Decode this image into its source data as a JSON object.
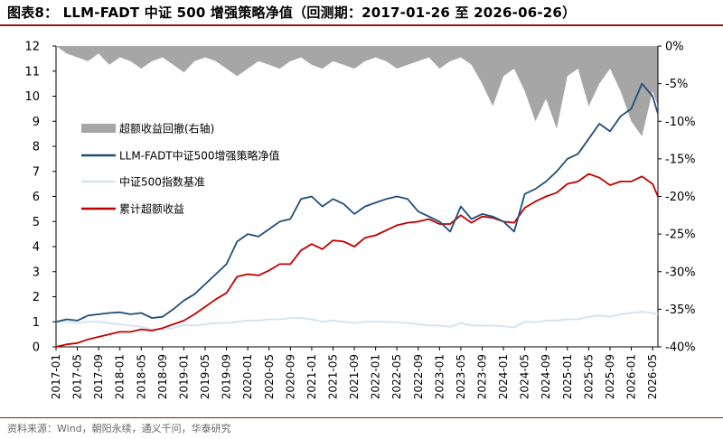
{
  "page_title": "图表8： LLM-FADT 中证 500 增强策略净值（回测期：2017-01-26 至 2026-06-26）",
  "source_note": "资料来源：Wind，朝阳永续，通义千问，华泰研究",
  "colors": {
    "drawdown": "#a6a6a6",
    "strategy": "#1f4e79",
    "index": "#d6e4f0",
    "excess": "#c00000"
  },
  "chart_data": {
    "type": "line",
    "title": "LLM-FADT 中证 500 增强策略净值",
    "x_tick_labels": [
      "2017-01",
      "2017-05",
      "2017-09",
      "2018-01",
      "2018-05",
      "2018-09",
      "2019-01",
      "2019-05",
      "2019-09",
      "2020-01",
      "2020-05",
      "2020-09",
      "2021-01",
      "2021-05",
      "2021-09",
      "2022-01",
      "2022-05",
      "2022-09",
      "2023-01",
      "2023-05",
      "2023-09",
      "2024-01",
      "2024-05",
      "2024-09",
      "2025-01",
      "2025-05",
      "2025-09",
      "2026-01",
      "2026-05"
    ],
    "left_axis": {
      "range": [
        0,
        12
      ],
      "ticks": [
        "0",
        "1",
        "2",
        "3",
        "4",
        "5",
        "6",
        "7",
        "8",
        "9",
        "10",
        "11",
        "12"
      ]
    },
    "right_axis": {
      "range": [
        -40,
        0
      ],
      "ticks": [
        "0%",
        "-5%",
        "-10%",
        "-15%",
        "-20%",
        "-25%",
        "-30%",
        "-35%",
        "-40%"
      ]
    },
    "legend_position": "upper-left",
    "x_months": [
      0,
      2,
      4,
      6,
      8,
      10,
      12,
      14,
      16,
      18,
      20,
      22,
      24,
      26,
      28,
      30,
      32,
      34,
      36,
      38,
      40,
      42,
      44,
      46,
      48,
      50,
      52,
      54,
      56,
      58,
      60,
      62,
      64,
      66,
      68,
      70,
      72,
      74,
      76,
      78,
      80,
      82,
      84,
      86,
      88,
      90,
      92,
      94,
      96,
      98,
      100,
      102,
      104,
      106,
      108,
      110,
      112,
      113
    ],
    "series": [
      {
        "name": "超额收益回撤(右轴)",
        "axis": "right",
        "style": "area",
        "values": [
          0,
          -1,
          -1.5,
          -2,
          -1,
          -2.5,
          -1.5,
          -2,
          -3,
          -2,
          -1.5,
          -2.5,
          -3.5,
          -2,
          -1.5,
          -2,
          -3,
          -4,
          -3,
          -2,
          -2.5,
          -3,
          -2,
          -1.5,
          -2.5,
          -3,
          -2,
          -2.5,
          -3,
          -2,
          -1.5,
          -2,
          -3,
          -2.5,
          -2,
          -1.5,
          -3,
          -2,
          -1.5,
          -2.5,
          -5,
          -8,
          -4,
          -3,
          -6,
          -10,
          -7,
          -11,
          -4,
          -3,
          -8,
          -5,
          -3,
          -6,
          -10,
          -12,
          -6,
          -8
        ]
      },
      {
        "name": "LLM-FADT中证500增强策略净值",
        "axis": "left",
        "style": "line",
        "values": [
          1.0,
          1.1,
          1.05,
          1.25,
          1.3,
          1.35,
          1.38,
          1.3,
          1.35,
          1.15,
          1.2,
          1.5,
          1.85,
          2.1,
          2.5,
          2.9,
          3.3,
          4.2,
          4.5,
          4.4,
          4.7,
          5.0,
          5.1,
          5.9,
          6.0,
          5.6,
          5.9,
          5.7,
          5.3,
          5.6,
          5.75,
          5.9,
          6.0,
          5.9,
          5.4,
          5.2,
          5.0,
          4.6,
          5.6,
          5.1,
          5.3,
          5.2,
          5.0,
          4.6,
          6.1,
          6.3,
          6.6,
          7.0,
          7.5,
          7.7,
          8.3,
          8.9,
          8.6,
          9.2,
          9.5,
          10.5,
          10.0,
          9.3
        ]
      },
      {
        "name": "中证500指数基准",
        "axis": "left",
        "style": "line",
        "values": [
          1.0,
          1.0,
          0.95,
          1.0,
          1.0,
          0.95,
          0.9,
          0.85,
          0.8,
          0.7,
          0.7,
          0.75,
          0.88,
          0.85,
          0.9,
          0.95,
          0.95,
          1.0,
          1.05,
          1.05,
          1.1,
          1.1,
          1.15,
          1.15,
          1.1,
          1.0,
          1.05,
          1.0,
          0.95,
          1.0,
          1.0,
          1.0,
          0.98,
          0.95,
          0.9,
          0.85,
          0.85,
          0.8,
          0.95,
          0.85,
          0.85,
          0.85,
          0.82,
          0.78,
          1.0,
          0.98,
          1.05,
          1.05,
          1.1,
          1.1,
          1.2,
          1.25,
          1.2,
          1.3,
          1.35,
          1.4,
          1.35,
          1.3
        ]
      },
      {
        "name": "累计超额收益",
        "axis": "left",
        "style": "line",
        "values": [
          0.0,
          0.1,
          0.15,
          0.3,
          0.4,
          0.5,
          0.6,
          0.6,
          0.7,
          0.65,
          0.75,
          0.9,
          1.05,
          1.3,
          1.6,
          1.9,
          2.15,
          2.8,
          2.9,
          2.85,
          3.05,
          3.3,
          3.3,
          3.85,
          4.1,
          3.9,
          4.25,
          4.2,
          4.0,
          4.35,
          4.45,
          4.65,
          4.85,
          4.95,
          5.0,
          5.1,
          4.9,
          4.9,
          5.25,
          4.95,
          5.2,
          5.15,
          5.0,
          4.95,
          5.55,
          5.8,
          6.0,
          6.15,
          6.5,
          6.6,
          6.9,
          6.75,
          6.45,
          6.6,
          6.6,
          6.8,
          6.5,
          6.0
        ]
      }
    ]
  }
}
